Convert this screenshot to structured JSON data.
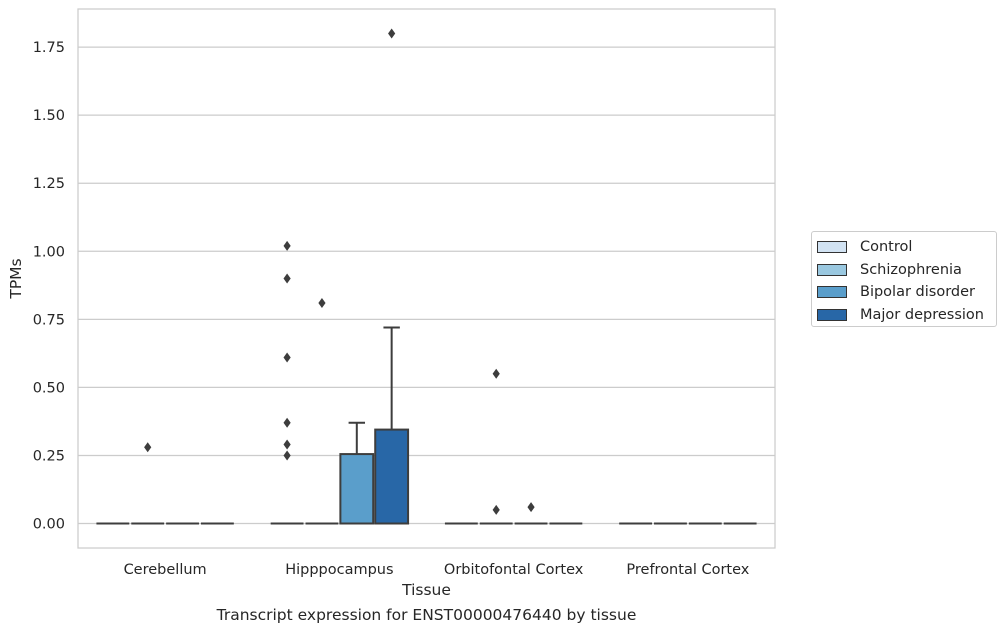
{
  "chart_data": {
    "type": "boxplot",
    "caption": "Transcript expression for ENST00000476440 by tissue",
    "xlabel": "Tissue",
    "ylabel": "TPMs",
    "ylim": [
      -0.09,
      1.89
    ],
    "yticks": [
      0.0,
      0.25,
      0.5,
      0.75,
      1.0,
      1.25,
      1.5,
      1.75
    ],
    "ytick_labels": [
      "0.00",
      "0.25",
      "0.50",
      "0.75",
      "1.00",
      "1.25",
      "1.50",
      "1.75"
    ],
    "grid": "horizontal",
    "legend_position": "right",
    "categories": [
      "Cerebellum",
      "Hipppocampus",
      "Orbitofontal Cortex",
      "Prefrontal Cortex"
    ],
    "series": [
      {
        "name": "Control",
        "color": "#d2e3f3",
        "boxes": [
          {
            "q1": 0,
            "median": 0,
            "q3": 0,
            "whisker_low": 0,
            "whisker_high": 0,
            "outliers": []
          },
          {
            "q1": 0,
            "median": 0,
            "q3": 0,
            "whisker_low": 0,
            "whisker_high": 0,
            "outliers": [
              0.25,
              0.29,
              0.37,
              0.61,
              0.9,
              1.02
            ]
          },
          {
            "q1": 0,
            "median": 0,
            "q3": 0,
            "whisker_low": 0,
            "whisker_high": 0,
            "outliers": []
          },
          {
            "q1": 0,
            "median": 0,
            "q3": 0,
            "whisker_low": 0,
            "whisker_high": 0,
            "outliers": []
          }
        ]
      },
      {
        "name": "Schizophrenia",
        "color": "#9ac8e0",
        "boxes": [
          {
            "q1": 0,
            "median": 0,
            "q3": 0,
            "whisker_low": 0,
            "whisker_high": 0,
            "outliers": [
              0.28
            ]
          },
          {
            "q1": 0,
            "median": 0,
            "q3": 0,
            "whisker_low": 0,
            "whisker_high": 0,
            "outliers": [
              0.81
            ]
          },
          {
            "q1": 0,
            "median": 0,
            "q3": 0,
            "whisker_low": 0,
            "whisker_high": 0,
            "outliers": [
              0.05,
              0.55
            ]
          },
          {
            "q1": 0,
            "median": 0,
            "q3": 0,
            "whisker_low": 0,
            "whisker_high": 0,
            "outliers": []
          }
        ]
      },
      {
        "name": "Bipolar disorder",
        "color": "#5a9ecb",
        "boxes": [
          {
            "q1": 0,
            "median": 0,
            "q3": 0,
            "whisker_low": 0,
            "whisker_high": 0,
            "outliers": []
          },
          {
            "q1": 0,
            "median": 0,
            "q3": 0.255,
            "whisker_low": 0,
            "whisker_high": 0.37,
            "outliers": []
          },
          {
            "q1": 0,
            "median": 0,
            "q3": 0,
            "whisker_low": 0,
            "whisker_high": 0,
            "outliers": [
              0.06
            ]
          },
          {
            "q1": 0,
            "median": 0,
            "q3": 0,
            "whisker_low": 0,
            "whisker_high": 0,
            "outliers": []
          }
        ]
      },
      {
        "name": "Major depression",
        "color": "#2867a7",
        "boxes": [
          {
            "q1": 0,
            "median": 0,
            "q3": 0,
            "whisker_low": 0,
            "whisker_high": 0,
            "outliers": []
          },
          {
            "q1": 0,
            "median": 0,
            "q3": 0.345,
            "whisker_low": 0,
            "whisker_high": 0.72,
            "outliers": [
              1.8
            ]
          },
          {
            "q1": 0,
            "median": 0,
            "q3": 0,
            "whisker_low": 0,
            "whisker_high": 0,
            "outliers": []
          },
          {
            "q1": 0,
            "median": 0,
            "q3": 0,
            "whisker_low": 0,
            "whisker_high": 0,
            "outliers": []
          }
        ]
      }
    ]
  }
}
